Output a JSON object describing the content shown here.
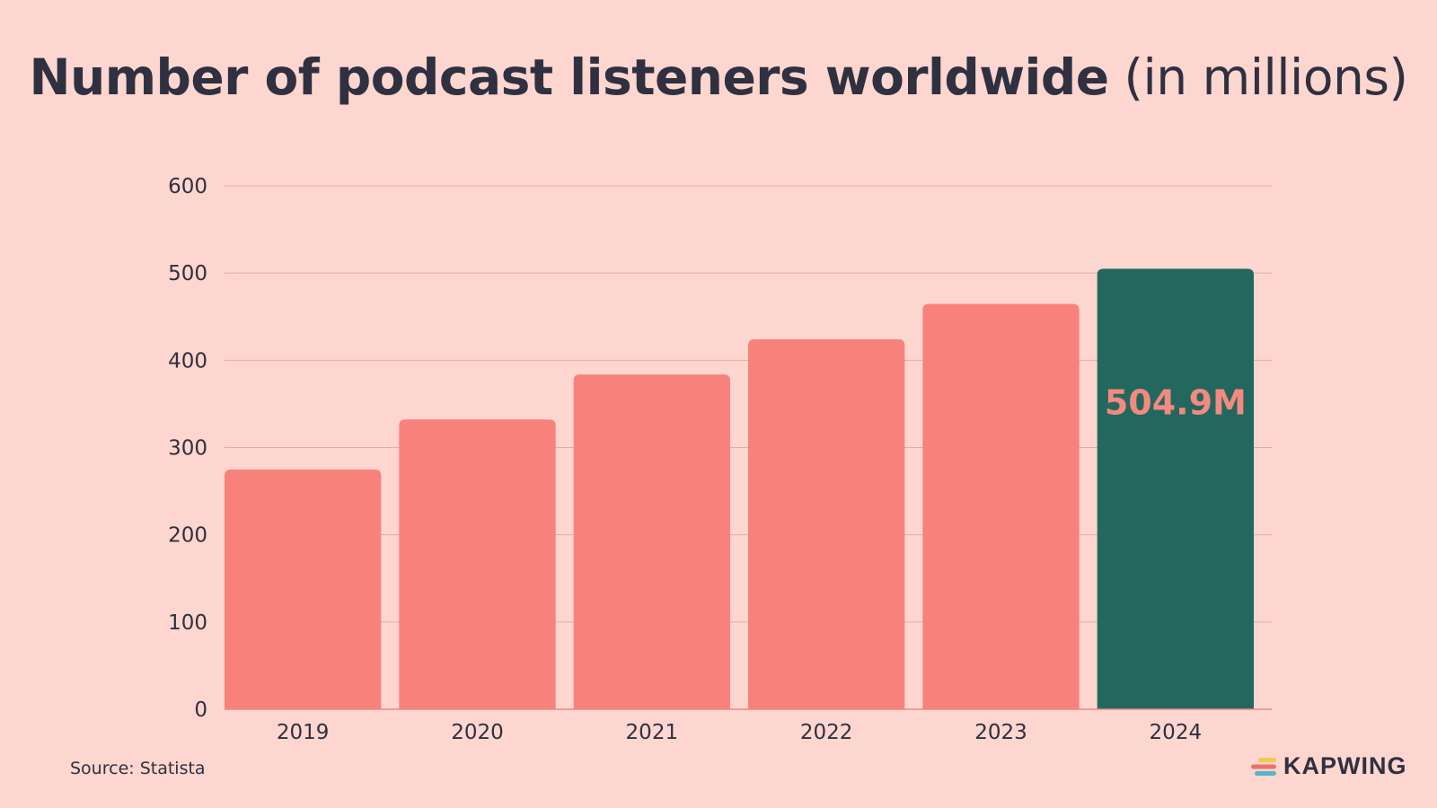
{
  "colors": {
    "background": "#fdd6d0",
    "bar": "#f7827c",
    "highlight_bar": "#22685f",
    "highlight_label": "#f4897f",
    "text": "#2f3040",
    "grid": "#e9aaa3"
  },
  "footer": {
    "source": "Source: Statista",
    "brand": "KAPWING",
    "brand_icon": "kapwing-logo-icon"
  },
  "chart_data": {
    "type": "bar",
    "title": "Number of podcast listeners worldwide",
    "title_suffix": "(in millions)",
    "categories": [
      "2019",
      "2020",
      "2021",
      "2022",
      "2023",
      "2024"
    ],
    "values": [
      274.8,
      332.2,
      383.7,
      424.2,
      464.7,
      504.9
    ],
    "ylim": [
      0,
      600
    ],
    "yticks": [
      "0",
      "100",
      "200",
      "300",
      "400",
      "500",
      "600"
    ],
    "grid": true,
    "highlight_index": 5,
    "highlight_label": "504.9M",
    "xlabel": "",
    "ylabel": ""
  }
}
